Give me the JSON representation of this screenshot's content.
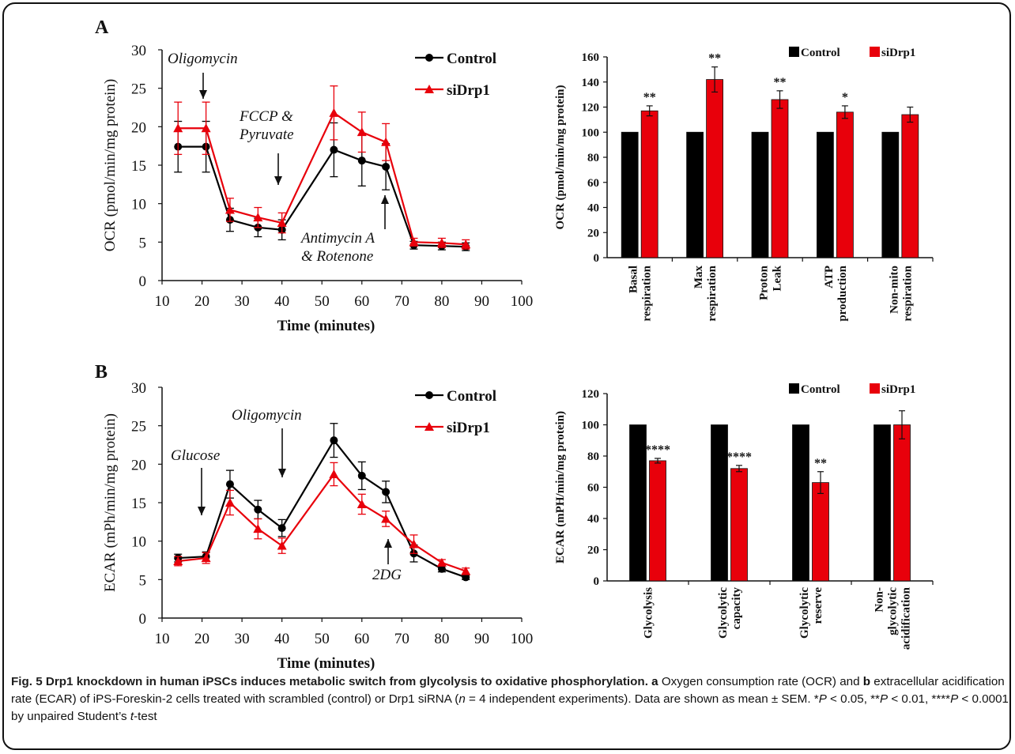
{
  "colors": {
    "control": "#000000",
    "sidrp1": "#e8000b"
  },
  "panels": {
    "a": {
      "letter": "A"
    },
    "b": {
      "letter": "B"
    }
  },
  "chart_data": [
    {
      "id": "ocr-line",
      "type": "line",
      "xlabel": "Time  (minutes)",
      "ylabel": "OCR  (pmol/min/mg  protein)",
      "xlim": [
        10,
        100
      ],
      "ylim": [
        0,
        30
      ],
      "xticks": [
        10,
        20,
        30,
        40,
        50,
        60,
        70,
        80,
        90,
        100
      ],
      "yticks": [
        0,
        5,
        10,
        15,
        20,
        25,
        30
      ],
      "legend_position": "top-right",
      "x": [
        14,
        21,
        27,
        34,
        40,
        53,
        60,
        66,
        73,
        80,
        86
      ],
      "series": [
        {
          "name": "Control",
          "marker": "circle",
          "values": [
            17.4,
            17.4,
            7.9,
            6.9,
            6.6,
            17.0,
            15.6,
            14.8,
            4.6,
            4.5,
            4.4
          ],
          "error": [
            3.3,
            3.3,
            1.5,
            1.2,
            1.3,
            3.5,
            3.3,
            3.0,
            0.5,
            0.5,
            0.5
          ]
        },
        {
          "name": "siDrp1",
          "marker": "triangle",
          "values": [
            19.8,
            19.8,
            9.2,
            8.2,
            7.5,
            21.8,
            19.3,
            18.0,
            5.0,
            4.9,
            4.7
          ],
          "error": [
            3.4,
            3.4,
            1.5,
            1.3,
            1.3,
            3.5,
            2.6,
            2.4,
            0.5,
            0.6,
            0.6
          ]
        }
      ],
      "annotations": [
        {
          "lines": [
            "Oligomycin"
          ],
          "arrow": "down",
          "x": 21
        },
        {
          "lines": [
            "FCCP &",
            "Pyruvate"
          ],
          "arrow": "down",
          "x": 40
        },
        {
          "lines": [
            "Antimycin A",
            "& Rotenone"
          ],
          "arrow": "up",
          "x": 66
        }
      ]
    },
    {
      "id": "ocr-bar",
      "type": "bar",
      "ylabel": "OCR (pmol/min/mg protein)",
      "ylim": [
        0,
        160
      ],
      "yticks": [
        0,
        20,
        40,
        60,
        80,
        100,
        120,
        140,
        160
      ],
      "legend_position": "top-right",
      "categories": [
        [
          "Basal",
          "respiration"
        ],
        [
          "Max",
          "respiration"
        ],
        [
          "Proton",
          "Leak"
        ],
        [
          "ATP",
          "production"
        ],
        [
          "Non-mito",
          "respiration"
        ]
      ],
      "series": [
        {
          "name": "Control",
          "values": [
            100,
            100,
            100,
            100,
            100
          ]
        },
        {
          "name": "siDrp1",
          "values": [
            117,
            142,
            126,
            116,
            114
          ],
          "error": [
            4,
            10,
            7,
            5,
            6
          ]
        }
      ],
      "significance": [
        "**",
        "**",
        "**",
        "*",
        ""
      ]
    },
    {
      "id": "ecar-line",
      "type": "line",
      "xlabel": "Time  (minutes)",
      "ylabel": "ECAR  (mPh/min/mg  protein)",
      "xlim": [
        10,
        100
      ],
      "ylim": [
        0,
        30
      ],
      "xticks": [
        10,
        20,
        30,
        40,
        50,
        60,
        70,
        80,
        90,
        100
      ],
      "yticks": [
        0,
        5,
        10,
        15,
        20,
        25,
        30
      ],
      "legend_position": "top-right",
      "x": [
        14,
        21,
        27,
        34,
        40,
        53,
        60,
        66,
        73,
        80,
        86
      ],
      "series": [
        {
          "name": "Control",
          "marker": "circle",
          "values": [
            7.8,
            8.0,
            17.4,
            14.1,
            11.7,
            23.1,
            18.5,
            16.4,
            8.4,
            6.4,
            5.3
          ],
          "error": [
            0.5,
            0.6,
            1.8,
            1.2,
            1.1,
            2.2,
            1.8,
            1.4,
            1.1,
            0.4,
            0.3
          ]
        },
        {
          "name": "siDrp1",
          "marker": "triangle",
          "values": [
            7.4,
            7.8,
            15.0,
            11.6,
            9.4,
            18.7,
            14.8,
            12.9,
            9.6,
            7.2,
            6.1
          ],
          "error": [
            0.6,
            0.7,
            1.6,
            1.3,
            1.0,
            1.5,
            1.3,
            1.0,
            1.2,
            0.4,
            0.4
          ]
        }
      ],
      "annotations": [
        {
          "lines": [
            "Glucose"
          ],
          "arrow": "down",
          "x": 21
        },
        {
          "lines": [
            "Oligomycin"
          ],
          "arrow": "down",
          "x": 40
        },
        {
          "lines": [
            "2DG"
          ],
          "arrow": "up",
          "x": 66
        }
      ]
    },
    {
      "id": "ecar-bar",
      "type": "bar",
      "ylabel": "ECAR (mPH/min/mg protein)",
      "ylim": [
        0,
        120
      ],
      "yticks": [
        0,
        20,
        40,
        60,
        80,
        100,
        120
      ],
      "legend_position": "top-right",
      "categories": [
        [
          "Glycolysis"
        ],
        [
          "Glycolytic",
          "capacity"
        ],
        [
          "Glycolytic",
          "reserve"
        ],
        [
          "Non-",
          "glycolytic",
          "acidification"
        ]
      ],
      "series": [
        {
          "name": "Control",
          "values": [
            100,
            100,
            100,
            100
          ]
        },
        {
          "name": "siDrp1",
          "values": [
            77,
            72,
            63,
            100
          ],
          "error": [
            1.5,
            2,
            7,
            9
          ]
        }
      ],
      "significance": [
        "****",
        "****",
        "**",
        ""
      ]
    }
  ],
  "caption": {
    "lead": "Fig. 5 Drp1 knockdown in human iPSCs induces metabolic switch from glycolysis to oxidative phosphorylation.",
    "panel_a": "a",
    "text_1": " Oxygen consumption rate (OCR) and ",
    "panel_b": "b",
    "text_2": " extracellular acidification rate (ECAR) of iPS-Foreskin-2 cells treated with scrambled (control) or Drp1 siRNA (",
    "n_var": "n",
    "text_3": " = 4 independent experiments). Data are shown as mean ± SEM. *",
    "p1": "P",
    "text_4": " < 0.05, **",
    "p2": "P",
    "text_5": " < 0.01, ****",
    "p3": "P",
    "text_6": " < 0.0001 by unpaired Student’s ",
    "t_var": "t",
    "text_7": "-test"
  }
}
